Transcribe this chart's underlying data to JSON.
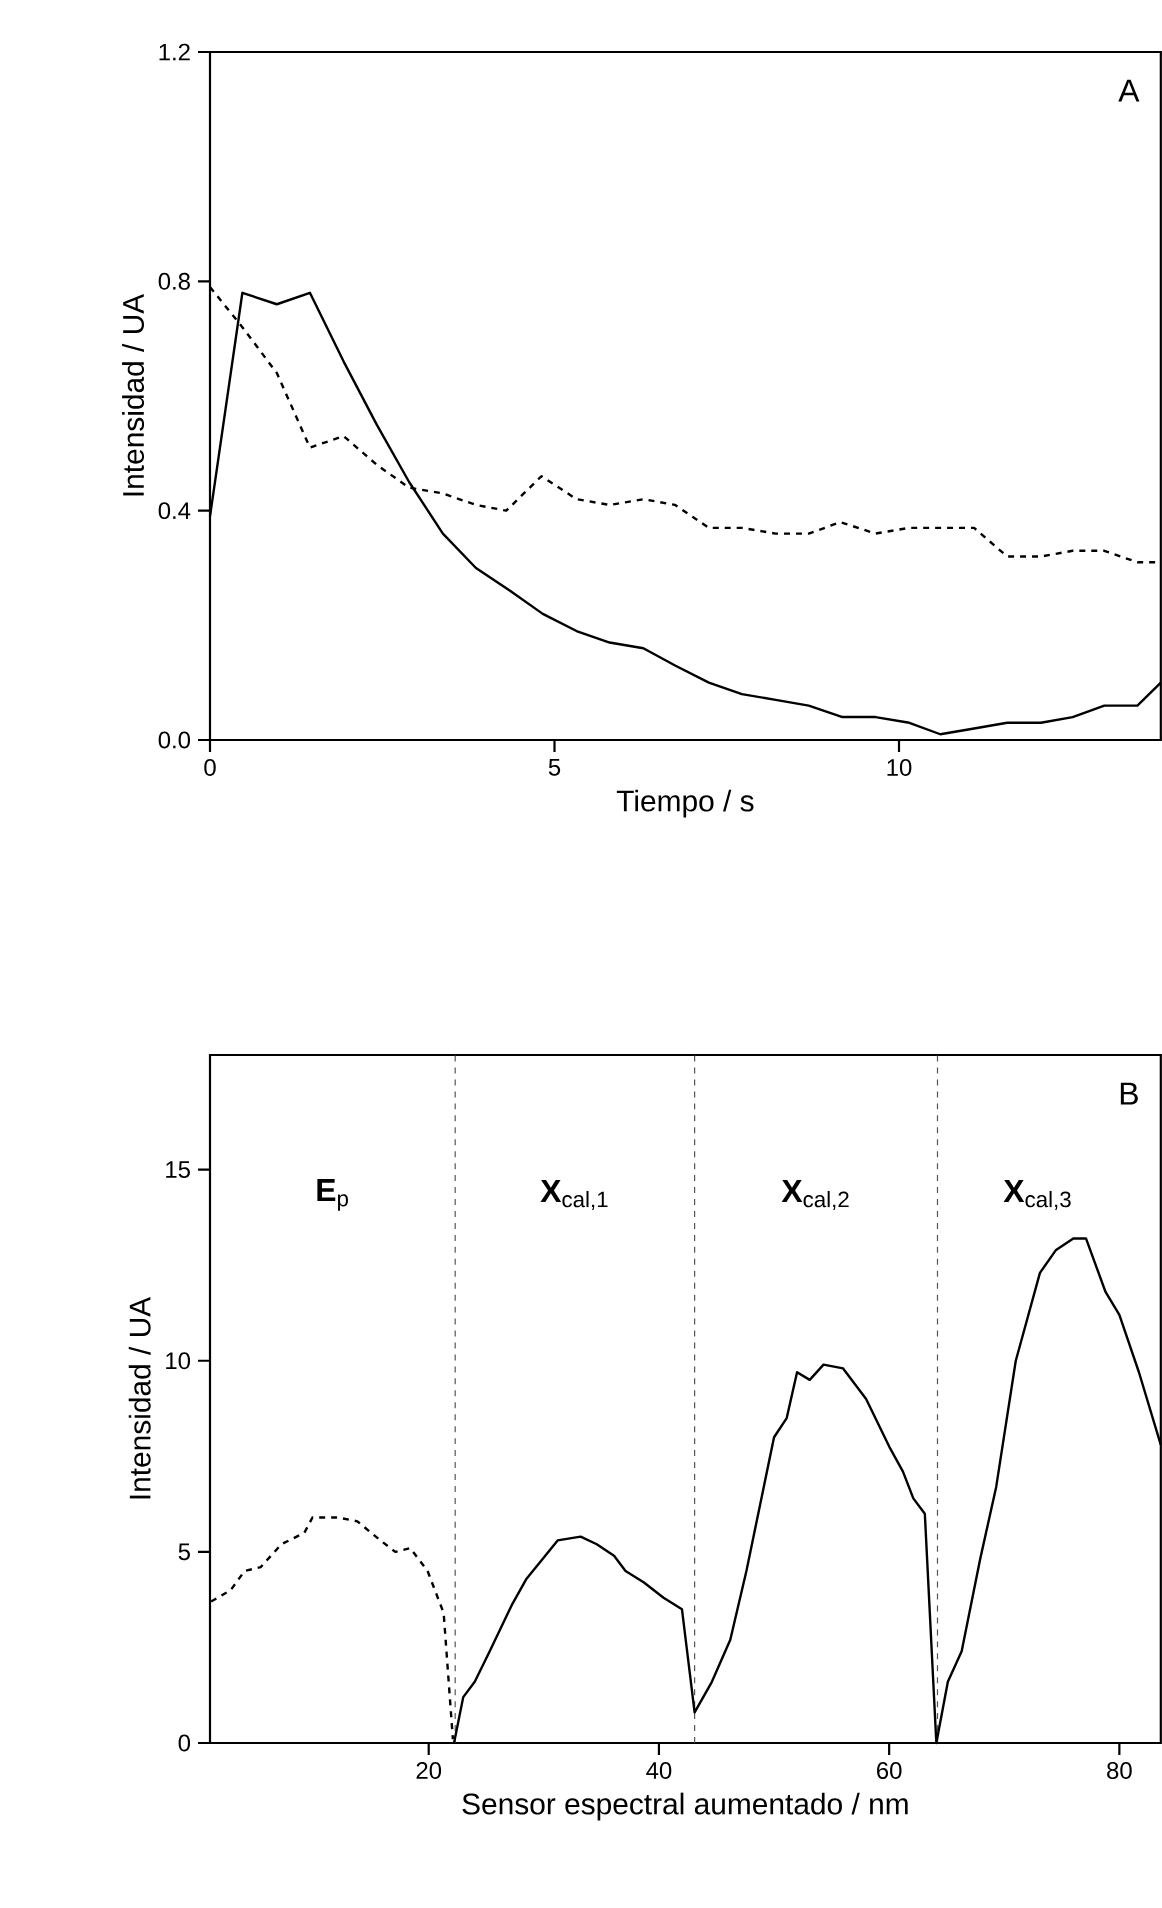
{
  "chart_data": [
    {
      "type": "line",
      "xlabel": "Tiempo / s",
      "ylabel": "Intensidad / UA",
      "xlim": [
        0,
        13.8
      ],
      "ylim": [
        0,
        1.2
      ],
      "xticks": [
        0,
        5,
        10
      ],
      "yticks": [
        {
          "value": 0,
          "label": "0.0"
        },
        {
          "value": 0.4,
          "label": "0.4"
        },
        {
          "value": 0.8,
          "label": "0.8"
        },
        {
          "value": 1.2,
          "label": "1.2"
        }
      ],
      "annotations": [
        "A"
      ],
      "series": [
        {
          "color": "#000000",
          "line_style": "solid",
          "x": [
            0,
            0.47,
            0.97,
            1.45,
            1.94,
            2.42,
            2.89,
            3.38,
            3.86,
            4.36,
            4.83,
            5.32,
            5.8,
            6.29,
            6.75,
            7.24,
            7.72,
            8.21,
            8.69,
            9.18,
            9.66,
            10.15,
            10.6,
            11.09,
            11.57,
            12.06,
            12.52,
            12.98,
            13.46,
            13.8
          ],
          "values": [
            0.39,
            0.78,
            0.76,
            0.78,
            0.66,
            0.55,
            0.45,
            0.36,
            0.3,
            0.26,
            0.22,
            0.19,
            0.17,
            0.16,
            0.13,
            0.1,
            0.08,
            0.07,
            0.06,
            0.04,
            0.04,
            0.03,
            0.01,
            0.02,
            0.03,
            0.03,
            0.04,
            0.06,
            0.06,
            0.1
          ]
        },
        {
          "color": "#000000",
          "line_style": "dashed",
          "x": [
            0,
            0.47,
            0.97,
            1.45,
            1.94,
            2.42,
            2.89,
            3.38,
            3.86,
            4.3,
            4.81,
            5.32,
            5.8,
            6.29,
            6.75,
            7.24,
            7.72,
            8.21,
            8.69,
            9.15,
            9.66,
            10.15,
            10.63,
            11.09,
            11.57,
            12.06,
            12.52,
            12.98,
            13.46,
            13.8
          ],
          "values": [
            0.79,
            0.72,
            0.64,
            0.51,
            0.53,
            0.48,
            0.44,
            0.43,
            0.41,
            0.4,
            0.46,
            0.42,
            0.41,
            0.42,
            0.41,
            0.37,
            0.37,
            0.36,
            0.36,
            0.38,
            0.36,
            0.37,
            0.37,
            0.37,
            0.32,
            0.32,
            0.33,
            0.33,
            0.31,
            0.31
          ]
        }
      ]
    },
    {
      "type": "line",
      "xlabel": "Sensor espectral aumentado / nm",
      "ylabel": "Intensidad / UA",
      "xlim": [
        1,
        83.6
      ],
      "ylim": [
        0,
        18
      ],
      "xticks": [
        20,
        40,
        60,
        80
      ],
      "yticks": [
        0,
        5,
        10,
        15
      ],
      "annotations": [
        "B",
        "**E**$_{p}$",
        "**X**$_{cal,1}$",
        "**X**$_{cal,2}$",
        "**X**$_{cal,3}$"
      ],
      "ref_lines": [
        {
          "axis": "x",
          "value": 22.3,
          "color": "#555555",
          "line_style": "dashed"
        },
        {
          "axis": "x",
          "value": 43.1,
          "color": "#555555",
          "line_style": "dashed"
        },
        {
          "axis": "x",
          "value": 64.2,
          "color": "#555555",
          "line_style": "dashed"
        }
      ],
      "series": [
        {
          "color": "#000000",
          "line_style": "dashed",
          "x": [
            1.1,
            2.8,
            4.0,
            5.4,
            7.2,
            9.2,
            9.9,
            12.1,
            13.8,
            15.8,
            17.1,
            18.4,
            19.9,
            21.3,
            22.1
          ],
          "values": [
            3.7,
            4.0,
            4.5,
            4.6,
            5.2,
            5.5,
            5.9,
            5.9,
            5.8,
            5.3,
            5.0,
            5.1,
            4.5,
            3.4,
            0.1
          ]
        },
        {
          "color": "#000000",
          "line_style": "solid",
          "x": [
            22.2,
            23.0,
            24.0,
            25.3,
            27.2,
            28.5,
            31.2,
            33.2,
            34.6,
            36.1,
            37.1,
            38.7,
            40.4,
            42.0,
            43.1,
            44.6,
            46.2,
            47.6,
            50.0,
            51.1,
            52.0,
            53.1,
            54.3,
            56.0,
            58.0,
            60.1,
            61.2,
            62.1,
            63.1,
            64.1,
            65.1,
            66.3,
            67.9,
            69.3,
            71.0,
            73.1,
            74.5,
            76.0,
            77.1,
            78.8,
            80.0,
            81.7,
            83.6
          ],
          "values": [
            0,
            1.2,
            1.6,
            2.4,
            3.6,
            4.3,
            5.3,
            5.4,
            5.2,
            4.9,
            4.5,
            4.2,
            3.8,
            3.5,
            0.8,
            1.6,
            2.7,
            4.5,
            8.0,
            8.5,
            9.7,
            9.5,
            9.9,
            9.8,
            9.0,
            7.7,
            7.1,
            6.4,
            6.0,
            0,
            1.6,
            2.4,
            4.8,
            6.7,
            10.0,
            12.3,
            12.9,
            13.2,
            13.2,
            11.8,
            11.2,
            9.7,
            7.8
          ]
        }
      ]
    }
  ]
}
